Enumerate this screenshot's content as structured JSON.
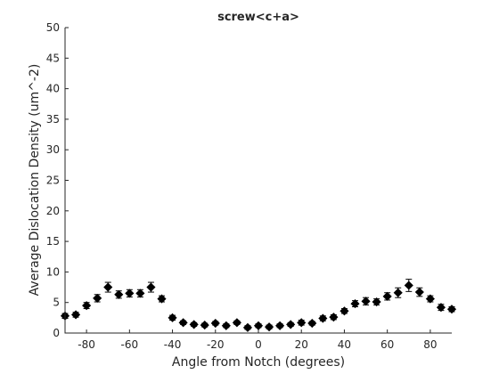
{
  "chart_data": {
    "type": "scatter",
    "title": "screw<c+a>",
    "xlabel": "Angle from Notch (degrees)",
    "ylabel": "Average Dislocation Density (um^-2)",
    "xlim": [
      -90,
      90
    ],
    "ylim": [
      0,
      50
    ],
    "xticks": [
      -80,
      -60,
      -40,
      -20,
      0,
      20,
      40,
      60,
      80
    ],
    "yticks": [
      0,
      5,
      10,
      15,
      20,
      25,
      30,
      35,
      40,
      45,
      50
    ],
    "grid": false,
    "colors": {
      "marker": "#000000",
      "axes": "#262626",
      "background": "#ffffff"
    },
    "series": [
      {
        "x": [
          -90,
          -85,
          -80,
          -75,
          -70,
          -65,
          -60,
          -55,
          -50,
          -45,
          -40,
          -35,
          -30,
          -25,
          -20,
          -15,
          -10,
          -5,
          0,
          5,
          10,
          15,
          20,
          25,
          30,
          35,
          40,
          45,
          50,
          55,
          60,
          65,
          70,
          75,
          80,
          85,
          90
        ],
        "y": [
          2.8,
          3.0,
          4.5,
          5.7,
          7.5,
          6.3,
          6.5,
          6.5,
          7.5,
          5.6,
          2.5,
          1.7,
          1.4,
          1.3,
          1.6,
          1.2,
          1.7,
          0.9,
          1.2,
          1.0,
          1.2,
          1.4,
          1.7,
          1.6,
          2.4,
          2.6,
          3.6,
          4.8,
          5.2,
          5.1,
          6.0,
          6.6,
          7.8,
          6.7,
          5.6,
          4.2,
          3.9
        ],
        "err": [
          0.4,
          0.4,
          0.5,
          0.6,
          0.8,
          0.6,
          0.6,
          0.6,
          0.8,
          0.5,
          0.4,
          0.3,
          0.3,
          0.3,
          0.3,
          0.3,
          0.3,
          0.3,
          0.3,
          0.3,
          0.3,
          0.3,
          0.4,
          0.3,
          0.4,
          0.4,
          0.4,
          0.5,
          0.6,
          0.5,
          0.6,
          0.8,
          1.0,
          0.7,
          0.5,
          0.5,
          0.4
        ]
      }
    ]
  }
}
